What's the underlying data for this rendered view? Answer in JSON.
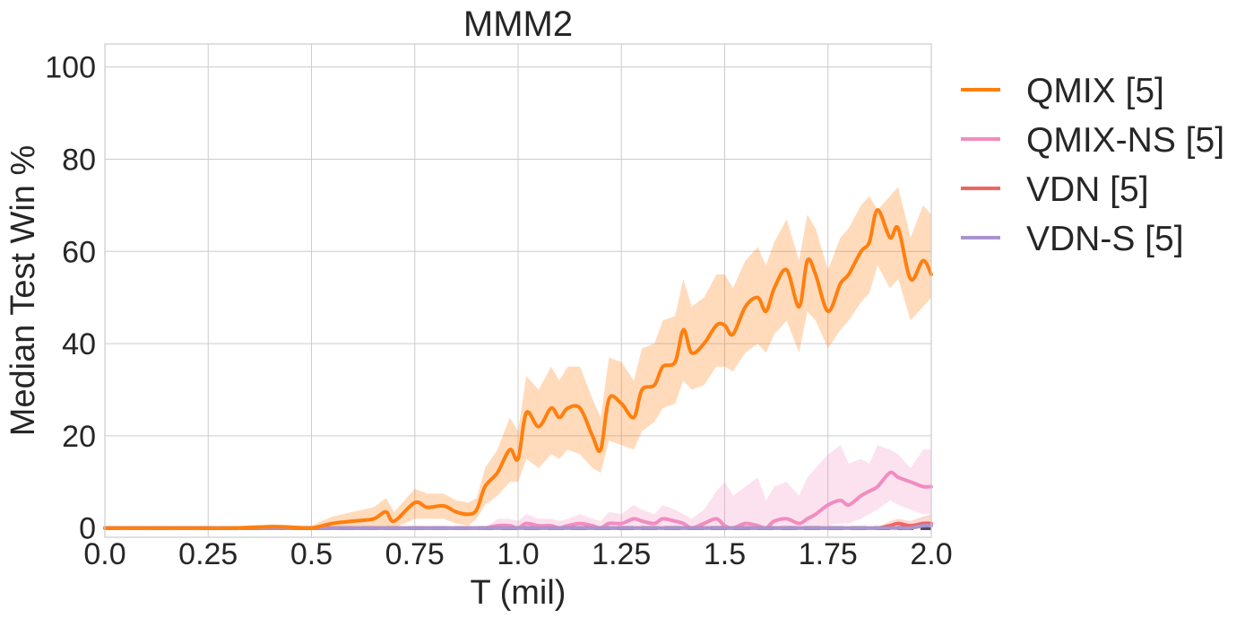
{
  "chart_data": {
    "type": "line",
    "title": "MMM2",
    "xlabel": "T (mil)",
    "ylabel": "Median Test Win %",
    "xlim": [
      0,
      2.0
    ],
    "ylim": [
      -2,
      105
    ],
    "xticks": [
      0.0,
      0.25,
      0.5,
      0.75,
      1.0,
      1.25,
      1.5,
      1.75,
      2.0
    ],
    "xtick_labels": [
      "0.0",
      "0.25",
      "0.5",
      "0.75",
      "1.0",
      "1.25",
      "1.5",
      "1.75",
      "2.0"
    ],
    "yticks": [
      0,
      20,
      40,
      60,
      80,
      100
    ],
    "ytick_labels": [
      "0",
      "20",
      "40",
      "60",
      "80",
      "100"
    ],
    "grid": true,
    "legend_position": "outside-right",
    "x": [
      0.0,
      0.1,
      0.2,
      0.3,
      0.4,
      0.45,
      0.5,
      0.55,
      0.6,
      0.65,
      0.68,
      0.7,
      0.75,
      0.78,
      0.82,
      0.85,
      0.88,
      0.9,
      0.92,
      0.95,
      0.98,
      1.0,
      1.02,
      1.05,
      1.08,
      1.1,
      1.12,
      1.15,
      1.18,
      1.2,
      1.22,
      1.25,
      1.28,
      1.3,
      1.33,
      1.35,
      1.38,
      1.4,
      1.42,
      1.45,
      1.48,
      1.5,
      1.52,
      1.55,
      1.58,
      1.6,
      1.62,
      1.65,
      1.68,
      1.7,
      1.72,
      1.75,
      1.78,
      1.8,
      1.83,
      1.85,
      1.87,
      1.9,
      1.92,
      1.95,
      1.98,
      2.0
    ],
    "series": [
      {
        "name": "QMIX [5]",
        "color": "#ff7f0e",
        "values": [
          0,
          0,
          0,
          0,
          0.3,
          0.2,
          0,
          1,
          1.5,
          2,
          3.5,
          1.5,
          5.5,
          4.5,
          4.8,
          3.5,
          3,
          4,
          9,
          12,
          17,
          15,
          25,
          22,
          26,
          24,
          26,
          26,
          20,
          17,
          28,
          27,
          24,
          30,
          31,
          35,
          36,
          43,
          38,
          40,
          44,
          44,
          42,
          48,
          50,
          47,
          52,
          56,
          48,
          58,
          55,
          47,
          53,
          55,
          60,
          62,
          69,
          63,
          65,
          54,
          58,
          55
        ],
        "lower": [
          0,
          0,
          0,
          0,
          0,
          0,
          0,
          0,
          0,
          0,
          0.5,
          0,
          2,
          2,
          2,
          1,
          0.5,
          2,
          5,
          7,
          10,
          10,
          15,
          13,
          16,
          15,
          17,
          16,
          13,
          12,
          19,
          18,
          17,
          21,
          23,
          26,
          27,
          32,
          30,
          31,
          35,
          35,
          34,
          38,
          40,
          38,
          42,
          45,
          38,
          47,
          45,
          39,
          43,
          45,
          49,
          51,
          57,
          52,
          54,
          45,
          48,
          50
        ],
        "upper": [
          0,
          0,
          0,
          0,
          0.8,
          0.6,
          0.5,
          2.5,
          3.5,
          4.5,
          6.5,
          3.5,
          8.5,
          7.5,
          7.5,
          6,
          5.5,
          6.5,
          13,
          17,
          24,
          21,
          33,
          30,
          35,
          32,
          35,
          35,
          28,
          24,
          37,
          36,
          32,
          39,
          40,
          45,
          46,
          54,
          48,
          50,
          55,
          55,
          52,
          58,
          61,
          57,
          62,
          67,
          58,
          68,
          65,
          56,
          63,
          65,
          70,
          72,
          69,
          72,
          74,
          63,
          70,
          68
        ]
      },
      {
        "name": "QMIX-NS [5]",
        "color": "#f28cc0",
        "values": [
          0,
          0,
          0,
          0,
          0,
          0,
          0,
          0,
          0,
          0,
          0,
          0,
          0,
          0,
          0,
          0,
          0,
          0,
          0,
          0.5,
          0.5,
          0,
          1,
          0.5,
          0.5,
          0,
          0.5,
          1,
          0.5,
          0,
          1,
          1,
          2,
          1.5,
          1,
          2,
          1.5,
          1,
          0,
          1,
          2,
          0.5,
          0,
          1,
          0.5,
          0,
          1.5,
          2,
          1,
          2,
          3,
          5,
          6,
          5,
          7,
          8,
          9,
          12,
          11,
          10,
          9,
          9
        ],
        "lower": [
          0,
          0,
          0,
          0,
          0,
          0,
          0,
          0,
          0,
          0,
          0,
          0,
          0,
          0,
          0,
          0,
          0,
          0,
          0,
          0,
          0,
          0,
          0,
          0,
          0,
          0,
          0,
          0,
          0,
          0,
          0,
          0,
          0,
          0,
          0,
          0,
          0,
          0,
          0,
          0,
          0,
          0,
          0,
          0,
          0,
          0,
          0,
          0,
          0,
          0,
          0,
          0.5,
          1,
          1,
          2,
          3,
          4,
          6,
          5,
          4,
          3,
          3
        ],
        "upper": [
          0,
          0,
          0,
          0,
          0,
          0,
          0,
          0,
          0,
          0,
          0,
          0,
          0,
          0,
          0,
          0,
          0,
          0,
          0,
          2,
          2,
          1.5,
          3,
          2,
          2,
          1.5,
          2,
          3,
          2,
          1.5,
          3.5,
          3,
          5,
          4,
          3,
          5,
          4,
          3,
          2,
          4,
          8,
          10,
          7,
          9,
          11,
          6,
          9,
          10,
          7,
          11,
          13,
          16,
          18,
          14,
          15,
          14,
          18,
          17,
          16,
          13,
          17,
          17
        ]
      },
      {
        "name": "VDN [5]",
        "color": "#f0655e",
        "values": [
          0,
          0,
          0,
          0,
          0,
          0,
          0,
          0,
          0,
          0,
          0,
          0,
          0,
          0,
          0,
          0,
          0,
          0,
          0,
          0,
          0,
          0,
          0,
          0,
          0,
          0,
          0,
          0,
          0,
          0,
          0,
          0,
          0,
          0,
          0,
          0,
          0,
          0,
          0,
          0,
          0,
          0,
          0,
          0,
          0,
          0,
          0,
          0,
          0,
          0,
          0,
          0,
          0,
          0,
          0,
          0,
          0,
          0.5,
          1,
          0.5,
          1,
          1
        ],
        "lower": [
          0,
          0,
          0,
          0,
          0,
          0,
          0,
          0,
          0,
          0,
          0,
          0,
          0,
          0,
          0,
          0,
          0,
          0,
          0,
          0,
          0,
          0,
          0,
          0,
          0,
          0,
          0,
          0,
          0,
          0,
          0,
          0,
          0,
          0,
          0,
          0,
          0,
          0,
          0,
          0,
          0,
          0,
          0,
          0,
          0,
          0,
          0,
          0,
          0,
          0,
          0,
          0,
          0,
          0,
          0,
          0,
          0,
          0,
          0,
          0,
          0,
          0
        ],
        "upper": [
          0,
          0,
          0,
          0,
          0,
          0,
          0,
          0,
          0,
          0,
          0,
          0,
          0,
          0,
          0,
          0,
          0,
          0,
          0,
          0,
          0,
          0,
          0,
          0,
          0,
          0,
          0,
          0,
          0,
          0,
          0,
          0,
          0,
          0,
          0,
          0,
          0,
          0,
          0,
          0,
          0,
          0,
          0,
          0,
          0,
          0,
          0,
          0,
          0,
          0,
          0,
          0,
          0,
          0,
          0,
          0,
          0,
          1.5,
          2,
          1.5,
          2.5,
          3
        ]
      },
      {
        "name": "VDN-S [5]",
        "color": "#a994cf",
        "values": [
          0,
          0,
          0,
          0,
          0,
          0,
          0,
          0,
          0,
          0,
          0,
          0,
          0,
          0,
          0,
          0,
          0,
          0,
          0,
          0,
          0,
          0,
          0,
          0,
          0,
          0,
          0,
          0,
          0,
          0,
          0,
          0,
          0,
          0,
          0,
          0,
          0,
          0,
          0,
          0,
          0,
          0,
          0,
          0,
          0,
          0,
          0,
          0,
          0,
          0,
          0,
          0,
          0,
          0,
          0,
          0,
          0,
          0,
          0,
          0,
          0.5,
          0.5
        ],
        "lower": [
          0,
          0,
          0,
          0,
          0,
          0,
          0,
          0,
          0,
          0,
          0,
          0,
          0,
          0,
          0,
          0,
          0,
          0,
          0,
          0,
          0,
          0,
          0,
          0,
          0,
          0,
          0,
          0,
          0,
          0,
          0,
          0,
          0,
          0,
          0,
          0,
          0,
          0,
          0,
          0,
          0,
          0,
          0,
          0,
          0,
          0,
          0,
          0,
          0,
          0,
          0,
          0,
          0,
          0,
          0,
          0,
          0,
          0,
          0,
          0,
          0,
          0
        ],
        "upper": [
          0,
          0,
          0,
          0,
          0,
          0,
          0,
          0,
          0,
          0,
          0,
          0,
          0,
          0,
          0,
          0,
          0,
          0,
          0,
          0,
          0,
          0,
          0,
          0,
          0,
          0,
          0,
          0,
          0,
          0,
          0,
          0,
          0,
          0,
          0,
          0,
          0,
          0,
          0,
          0,
          0,
          0,
          0,
          0,
          0,
          0,
          0,
          0,
          0,
          0,
          0,
          0,
          0,
          0,
          0,
          0,
          0,
          0,
          0,
          0.5,
          1,
          1
        ]
      }
    ]
  }
}
